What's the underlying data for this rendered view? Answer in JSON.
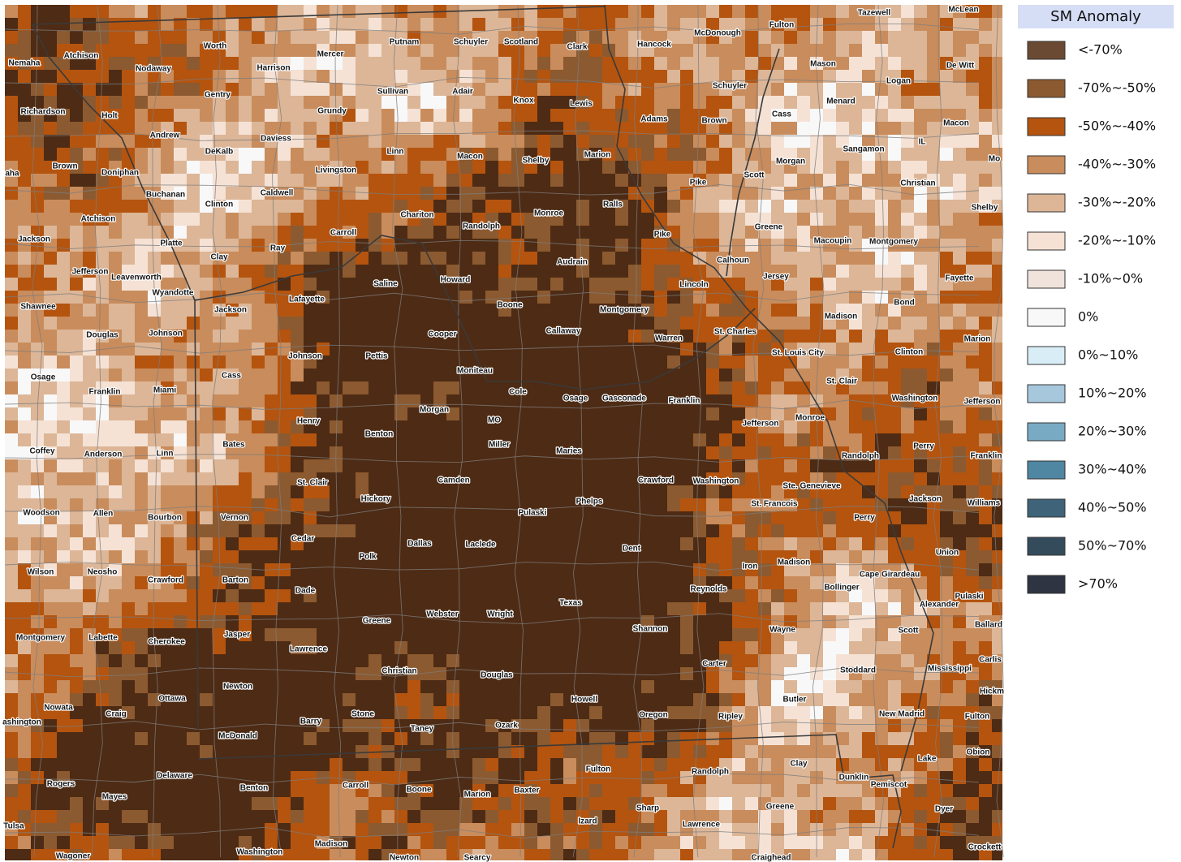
{
  "legend": {
    "title": "SM Anomaly",
    "items": [
      {
        "label": "<-70%",
        "color": "#6b4a33"
      },
      {
        "label": "-70%~-50%",
        "color": "#8c5a30"
      },
      {
        "label": "-50%~-40%",
        "color": "#b4540f"
      },
      {
        "label": "-40%~-30%",
        "color": "#c98c5c"
      },
      {
        "label": "-30%~-20%",
        "color": "#dcb697"
      },
      {
        "label": "-20%~-10%",
        "color": "#f5e2d5"
      },
      {
        "label": "-10%~0%",
        "color": "#efe3db"
      },
      {
        "label": "0%",
        "color": "#f8f8f8"
      },
      {
        "label": "0%~10%",
        "color": "#d8edf6"
      },
      {
        "label": "10%~20%",
        "color": "#a6c7dc"
      },
      {
        "label": "20%~30%",
        "color": "#79aac4"
      },
      {
        "label": "30%~40%",
        "color": "#4f86a2"
      },
      {
        "label": "40%~50%",
        "color": "#3f6379"
      },
      {
        "label": "50%~70%",
        "color": "#344b5b"
      },
      {
        "label": ">70%",
        "color": "#2e3441"
      }
    ]
  },
  "counties": [
    "Worth",
    "Mercer",
    "Putnam",
    "Schuyler",
    "Scotland",
    "Clark",
    "Hancock",
    "McDonough",
    "Fulton",
    "Tazewell",
    "McLean",
    "Nemaha",
    "Atchison",
    "Nodaway",
    "Harrison",
    "Sullivan",
    "Adair",
    "Mason",
    "De Witt",
    "Logan",
    "Gentry",
    "Grundy",
    "Knox",
    "Lewis",
    "Schuyler",
    "Menard",
    "Richardson",
    "Holt",
    "Adams",
    "Brown",
    "Cass",
    "Macon",
    "Andrew",
    "Daviess",
    "Linn",
    "Macon",
    "Shelby",
    "Marion",
    "Sangamon",
    "IL",
    "Brown",
    "Doniphan",
    "DeKalb",
    "Livingston",
    "Morgan",
    "Scott",
    "Pike",
    "Christian",
    "Buchanan",
    "Clinton",
    "Caldwell",
    "Ralls",
    "Shelby",
    "Chariton",
    "Randolph",
    "Monroe",
    "Atchison",
    "Carroll",
    "Greene",
    "Jackson",
    "Platte",
    "Clay",
    "Ray",
    "Pike",
    "Macoupin",
    "Montgomery",
    "Jefferson",
    "Leavenworth",
    "Audrain",
    "Calhoun",
    "Jersey",
    "Fayette",
    "Wyandotte",
    "Saline",
    "Howard",
    "Lincoln",
    "Shawnee",
    "Jackson",
    "Lafayette",
    "Boone",
    "Montgomery",
    "Bond",
    "Madison",
    "Douglas",
    "Johnson",
    "Cooper",
    "Callaway",
    "St. Charles",
    "Warren",
    "Marion",
    "Johnson",
    "Pettis",
    "St. Louis City",
    "Clinton",
    "Moniteau",
    "Osage",
    "Cass",
    "St. Clair",
    "Franklin",
    "Miami",
    "Cole",
    "Osage",
    "Gasconade",
    "Franklin",
    "Washington",
    "Jefferson",
    "Morgan",
    "MO",
    "Monroe",
    "Jefferson",
    "Henry",
    "Benton",
    "Miller",
    "Bates",
    "Maries",
    "Perry",
    "Coffey",
    "Anderson",
    "Linn",
    "Randolph",
    "Franklin",
    "Camden",
    "Crawford",
    "Washington",
    "St. Clair",
    "Ste. Genevieve",
    "Hickory",
    "Phelps",
    "St. Francois",
    "Jackson",
    "Williams",
    "Woodson",
    "Allen",
    "Bourbon",
    "Vernon",
    "Pulaski",
    "Perry",
    "Cedar",
    "Dallas",
    "Laclede",
    "Dent",
    "Union",
    "Polk",
    "Madison",
    "Iron",
    "Wilson",
    "Neosho",
    "Crawford",
    "Barton",
    "Cape Girardeau",
    "Reynolds",
    "Bollinger",
    "Dade",
    "Pulaski",
    "Texas",
    "Alexander",
    "Greene",
    "Webster",
    "Wright",
    "Shannon",
    "Wayne",
    "Scott",
    "Ballard",
    "Jasper",
    "Montgomery",
    "Labette",
    "Cherokee",
    "Lawrence",
    "Carter",
    "Carlis",
    "Christian",
    "Douglas",
    "Stoddard",
    "Mississippi",
    "Newton",
    "Ottawa",
    "Howell",
    "Butler",
    "Hickm",
    "Nowata",
    "Craig",
    "Stone",
    "Oregon",
    "Ripley",
    "New Madrid",
    "Fulton",
    "ashington",
    "Barry",
    "Taney",
    "Ozark",
    "McDonald",
    "Lake",
    "Obion",
    "Fulton",
    "Randolph",
    "Clay",
    "Delaware",
    "Dunklin",
    "Pemiscot",
    "Rogers",
    "Carroll",
    "Benton",
    "Boone",
    "Marion",
    "Baxter",
    "Mayes",
    "Greene",
    "Sharp",
    "Dyer",
    "Izard",
    "Lawrence",
    "Tulsa",
    "Madison",
    "Washington",
    "Crockett",
    "Wagoner",
    "Newton",
    "Searcy",
    "Craighead",
    "aha",
    "Mo"
  ]
}
